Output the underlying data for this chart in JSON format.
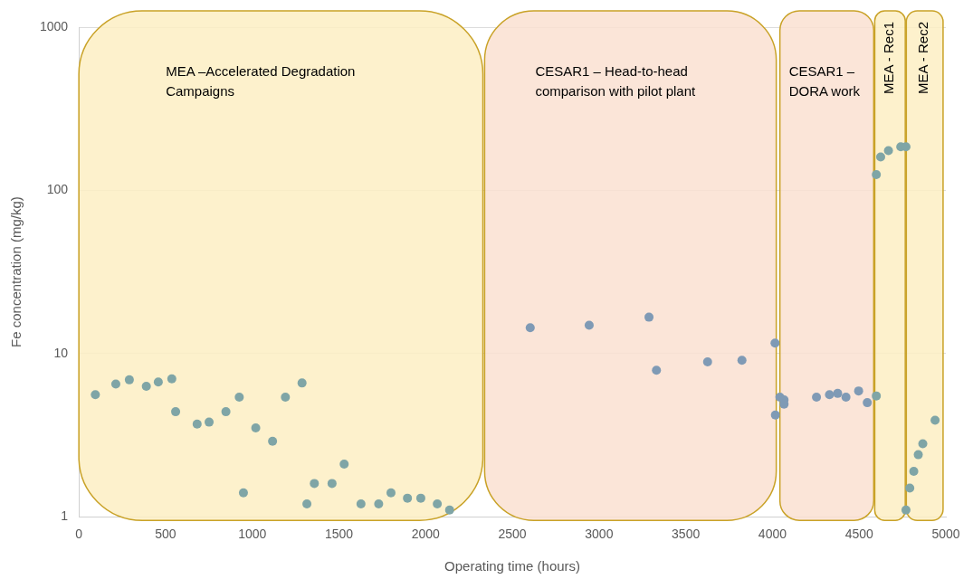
{
  "chart_data": {
    "type": "scatter",
    "xlabel": "Operating time (hours)",
    "ylabel": "Fe concentration (mg/kg)",
    "log": "y",
    "grid": "y",
    "legend": false,
    "marker": "circle",
    "xlim": [
      0,
      5000
    ],
    "xticks": [
      0,
      500,
      1000,
      1500,
      2000,
      2500,
      3000,
      3500,
      4000,
      4500,
      5000
    ],
    "ylim": [
      1,
      1000
    ],
    "yticks": [
      1,
      10,
      100,
      1000
    ],
    "series": [
      {
        "color": "#7fa5a6",
        "x": [
          95,
          213,
          291,
          389,
          458,
          536,
          558,
          682,
          751,
          848,
          925,
          949,
          1020,
          1117,
          1191,
          1287,
          1315,
          1358,
          1460,
          1530,
          1627,
          1729,
          1800,
          1895,
          1972,
          2067,
          2138,
          4599,
          4599,
          4624,
          4669,
          4740,
          4770,
          4770,
          4792,
          4815,
          4841,
          4867,
          4938
        ],
        "values": [
          5.6,
          6.5,
          6.9,
          6.3,
          6.7,
          7.0,
          4.4,
          3.7,
          3.8,
          4.4,
          5.4,
          1.4,
          3.5,
          2.9,
          5.4,
          6.6,
          1.2,
          1.6,
          1.6,
          2.1,
          1.2,
          1.2,
          1.4,
          1.3,
          1.3,
          1.2,
          1.1,
          5.5,
          125,
          160,
          175,
          185,
          185,
          1.1,
          1.5,
          1.9,
          2.4,
          2.8,
          3.9
        ]
      },
      {
        "color": "#7f9ab5",
        "x": [
          2603,
          2943,
          3288,
          3331,
          3626,
          3824,
          4015,
          4017,
          4043,
          4067,
          4067,
          4254,
          4329,
          4376,
          4424,
          4497,
          4547
        ],
        "values": [
          14.4,
          14.9,
          16.7,
          7.9,
          8.9,
          9.1,
          11.6,
          4.2,
          5.4,
          5.2,
          4.9,
          5.4,
          5.6,
          5.7,
          5.4,
          5.9,
          5.0
        ]
      }
    ],
    "bands": [
      {
        "axis": "x",
        "from": 0,
        "to": 2330,
        "label": "MEA –Accelerated Degradation Campaigns",
        "color": "#fdeec3"
      },
      {
        "axis": "x",
        "from": 2340,
        "to": 4022,
        "label": "CESAR1 – Head-to-head comparison with pilot plant",
        "color": "#fae1d1"
      },
      {
        "axis": "x",
        "from": 4043,
        "to": 4584,
        "label": "CESAR1 – DORA work",
        "color": "#fae1d1"
      },
      {
        "axis": "x",
        "from": 4590,
        "to": 4766,
        "label": "MEA - Rec1",
        "color": "#fdeec3"
      },
      {
        "axis": "x",
        "from": 4772,
        "to": 4984,
        "label": "MEA - Rec2",
        "color": "#fdeec3"
      }
    ]
  }
}
